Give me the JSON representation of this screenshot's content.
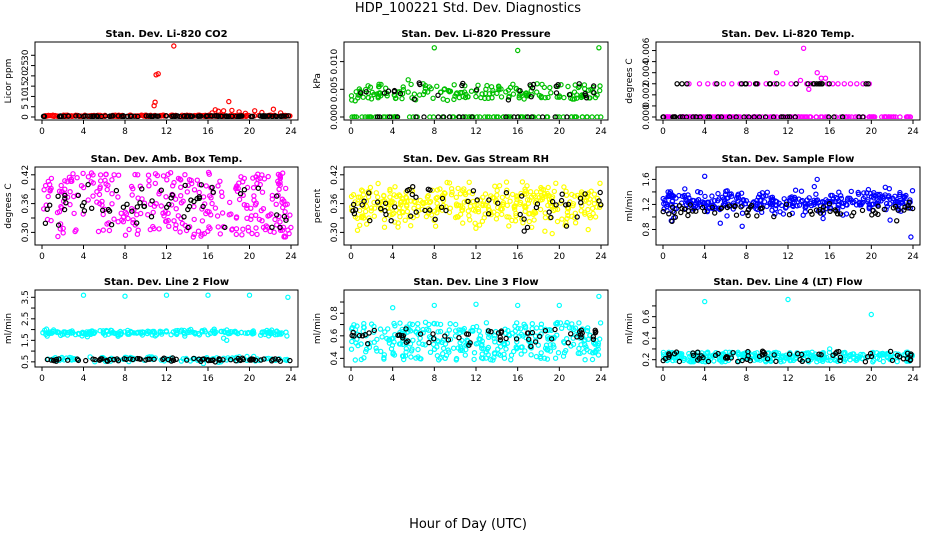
{
  "title": "HDP_100221  Std. Dev. Diagnostics",
  "x_axis_title": "Hour of Day (UTC)",
  "chart_data": [
    {
      "type": "scatter",
      "title": "Stan. Dev. Li-820 CO2",
      "ylabel": "Licor ppm",
      "color": "#ff0000",
      "xlim": [
        0,
        24
      ],
      "ylim": [
        0,
        35
      ],
      "xticks": [
        0,
        4,
        8,
        12,
        16,
        20,
        24
      ],
      "yticks": [
        0,
        5,
        10,
        15,
        20,
        25,
        30
      ],
      "ytick_labels": [
        "0",
        "5",
        "10",
        "15",
        "20",
        "25",
        "30"
      ],
      "band": {
        "type": "uniform",
        "lo": 0.2,
        "hi": 0.9,
        "n": 230
      },
      "outliers": [
        [
          10.8,
          5.5
        ],
        [
          10.9,
          7.2
        ],
        [
          11.0,
          20.5
        ],
        [
          11.2,
          21.0
        ],
        [
          12.7,
          34.5
        ],
        [
          16.4,
          2.0
        ],
        [
          16.7,
          3.5
        ],
        [
          17.0,
          2.8
        ],
        [
          17.5,
          3.0
        ],
        [
          18.0,
          7.5
        ],
        [
          18.3,
          3.2
        ],
        [
          19.0,
          2.5
        ],
        [
          19.6,
          1.8
        ],
        [
          20.5,
          3.0
        ],
        [
          21.2,
          2.2
        ],
        [
          22.3,
          3.8
        ],
        [
          23.0,
          2.0
        ]
      ],
      "black": {
        "type": "uniform",
        "lo": 0.2,
        "hi": 0.6,
        "n": 120
      }
    },
    {
      "type": "scatter",
      "title": "Stan. Dev. Li-820 Pressure",
      "ylabel": "kPa",
      "color": "#00c000",
      "xlim": [
        0,
        24
      ],
      "ylim": [
        0,
        0.013
      ],
      "xticks": [
        0,
        4,
        8,
        12,
        16,
        20,
        24
      ],
      "yticks": [
        0,
        0.005,
        0.01
      ],
      "ytick_labels": [
        "0.000",
        "0.005",
        "0.010"
      ],
      "band": {
        "type": "levels",
        "levels": [
          0.0,
          0.0035,
          0.0045,
          0.0055
        ],
        "probs": [
          0.28,
          0.25,
          0.25,
          0.22
        ],
        "n": 260
      },
      "outliers": [
        [
          8.0,
          0.0125
        ],
        [
          16.0,
          0.012
        ],
        [
          23.8,
          0.0125
        ]
      ],
      "black": {
        "type": "levels",
        "levels": [
          0.0,
          0.0035,
          0.0045,
          0.0055
        ],
        "probs": [
          0.4,
          0.2,
          0.2,
          0.2
        ],
        "n": 50
      }
    },
    {
      "type": "scatter",
      "title": "Stan. Dev. Li-820 Temp.",
      "ylabel": "degrees C",
      "color": "#ff00ff",
      "xlim": [
        0,
        24
      ],
      "ylim": [
        0,
        0.0065
      ],
      "xticks": [
        0,
        4,
        8,
        12,
        16,
        20,
        24
      ],
      "yticks": [
        0,
        0.001,
        0.002,
        0.003,
        0.004,
        0.005,
        0.006
      ],
      "ytick_labels": [
        "0.000",
        "",
        "0.002",
        "",
        "0.004",
        "",
        "0.006"
      ],
      "band": {
        "type": "levels",
        "levels": [
          0.0
        ],
        "probs": [
          1
        ],
        "n": 150
      },
      "outliers": [
        [
          2.5,
          0.003
        ],
        [
          3.5,
          0.003
        ],
        [
          4.3,
          0.003
        ],
        [
          5.0,
          0.003
        ],
        [
          5.8,
          0.003
        ],
        [
          6.6,
          0.003
        ],
        [
          7.4,
          0.003
        ],
        [
          8.3,
          0.003
        ],
        [
          9.1,
          0.003
        ],
        [
          9.9,
          0.003
        ],
        [
          10.7,
          0.003
        ],
        [
          10.9,
          0.004
        ],
        [
          11.5,
          0.003
        ],
        [
          12.3,
          0.003
        ],
        [
          12.8,
          0.003
        ],
        [
          13.2,
          0.0033
        ],
        [
          13.5,
          0.0062
        ],
        [
          13.8,
          0.003
        ],
        [
          14.2,
          0.003
        ],
        [
          14.8,
          0.004
        ],
        [
          15.2,
          0.0035
        ],
        [
          15.6,
          0.0035
        ],
        [
          15.0,
          0.003
        ],
        [
          15.8,
          0.003
        ],
        [
          16.3,
          0.003
        ],
        [
          16.8,
          0.003
        ],
        [
          17.4,
          0.003
        ],
        [
          18.0,
          0.003
        ],
        [
          18.6,
          0.003
        ],
        [
          19.2,
          0.003
        ],
        [
          19.8,
          0.003
        ],
        [
          14.0,
          0.0025
        ]
      ],
      "black": {
        "type": "mixed",
        "levels": [
          0.0,
          0.003
        ],
        "probs": [
          0.75,
          0.25
        ],
        "n": 60,
        "xmax": 20
      }
    },
    {
      "type": "scatter",
      "title": "Stan. Dev. Amb. Box Temp.",
      "ylabel": "degrees C",
      "color": "#ff00ff",
      "xlim": [
        0,
        24
      ],
      "ylim": [
        0.28,
        0.43
      ],
      "xticks": [
        0,
        4,
        8,
        12,
        16,
        20,
        24
      ],
      "yticks": [
        0.3,
        0.33,
        0.36,
        0.39,
        0.42
      ],
      "ytick_labels": [
        "0.30",
        "",
        "0.36",
        "",
        "0.42"
      ],
      "band": {
        "type": "uniform",
        "lo": 0.29,
        "hi": 0.425,
        "n": 320
      },
      "outliers": [],
      "black": {
        "type": "uniform",
        "lo": 0.31,
        "hi": 0.4,
        "n": 60
      }
    },
    {
      "type": "scatter",
      "title": "Stan. Dev. Gas Stream RH",
      "ylabel": "percent",
      "color": "#ffff00",
      "xlim": [
        0,
        24
      ],
      "ylim": [
        0.28,
        0.43
      ],
      "xticks": [
        0,
        4,
        8,
        12,
        16,
        20,
        24
      ],
      "yticks": [
        0.3,
        0.33,
        0.36,
        0.39,
        0.42
      ],
      "ytick_labels": [
        "0.30",
        "",
        "0.36",
        "",
        "0.42"
      ],
      "band": {
        "type": "normal",
        "mean": 0.355,
        "sd": 0.022,
        "n": 380
      },
      "outliers": [],
      "black": {
        "type": "normal",
        "mean": 0.355,
        "sd": 0.02,
        "n": 60
      }
    },
    {
      "type": "scatter",
      "title": "Stan. Dev. Sample Flow",
      "ylabel": "ml/min",
      "color": "#0000ff",
      "xlim": [
        0,
        24
      ],
      "ylim": [
        0.6,
        1.75
      ],
      "xticks": [
        0,
        4,
        8,
        12,
        16,
        20,
        24
      ],
      "yticks": [
        0.8,
        1.0,
        1.2,
        1.4,
        1.6
      ],
      "ytick_labels": [
        "0.8",
        "",
        "1.2",
        "",
        "1.6"
      ],
      "band": {
        "type": "normal",
        "mean": 1.24,
        "sd": 0.09,
        "n": 340
      },
      "outliers": [
        [
          4.0,
          1.65
        ],
        [
          14.8,
          1.6
        ],
        [
          23.8,
          0.68
        ],
        [
          5.5,
          0.9
        ],
        [
          7.6,
          0.85
        ],
        [
          21.8,
          0.95
        ]
      ],
      "black": {
        "type": "normal",
        "mean": 1.1,
        "sd": 0.07,
        "n": 70
      }
    },
    {
      "type": "scatter",
      "title": "Stan. Dev. Line 2 Flow",
      "ylabel": "ml/min",
      "color": "#00ffff",
      "xlim": [
        0,
        24
      ],
      "ylim": [
        0.4,
        3.7
      ],
      "xticks": [
        0,
        4,
        8,
        12,
        16,
        20,
        24
      ],
      "yticks": [
        0.5,
        1.0,
        1.5,
        2.0,
        2.5,
        3.0,
        3.5
      ],
      "ytick_labels": [
        "0.5",
        "",
        "1.5",
        "",
        "2.5",
        "",
        "3.5"
      ],
      "band": {
        "type": "levels",
        "levels": [
          1.85,
          0.62
        ],
        "probs": [
          0.65,
          0.35
        ],
        "n": 300,
        "jitter": 0.06
      },
      "outliers": [
        [
          4.0,
          3.6
        ],
        [
          8.0,
          3.55
        ],
        [
          12.0,
          3.6
        ],
        [
          16.0,
          3.6
        ],
        [
          20.0,
          3.6
        ],
        [
          23.7,
          3.5
        ],
        [
          17.8,
          1.5
        ],
        [
          17.5,
          1.6
        ]
      ],
      "black": {
        "type": "levels",
        "levels": [
          0.6
        ],
        "probs": [
          1
        ],
        "n": 80,
        "jitter": 0.04
      }
    },
    {
      "type": "scatter",
      "title": "Stan. Dev. Line 3 Flow",
      "ylabel": "ml/min",
      "color": "#00ffff",
      "xlim": [
        0,
        24
      ],
      "ylim": [
        0.35,
        0.98
      ],
      "xticks": [
        0,
        4,
        8,
        12,
        16,
        20,
        24
      ],
      "yticks": [
        0.4,
        0.5,
        0.6,
        0.7,
        0.8,
        0.9
      ],
      "ytick_labels": [
        "0.4",
        "",
        "0.6",
        "",
        "0.8",
        ""
      ],
      "band": {
        "type": "uniform",
        "lo": 0.38,
        "hi": 0.72,
        "n": 360
      },
      "outliers": [
        [
          4.0,
          0.85
        ],
        [
          8.0,
          0.87
        ],
        [
          12.0,
          0.88
        ],
        [
          16.0,
          0.87
        ],
        [
          20.0,
          0.87
        ],
        [
          23.8,
          0.95
        ]
      ],
      "black": {
        "type": "normal",
        "mean": 0.6,
        "sd": 0.035,
        "n": 60
      }
    },
    {
      "type": "scatter",
      "title": "Stan. Dev. Line 4 (LT) Flow",
      "ylabel": "ml/min",
      "color": "#00ffff",
      "xlim": [
        0,
        24
      ],
      "ylim": [
        0.16,
        0.82
      ],
      "xticks": [
        0,
        4,
        8,
        12,
        16,
        20,
        24
      ],
      "yticks": [
        0.2,
        0.3,
        0.4,
        0.5,
        0.6,
        0.7
      ],
      "ytick_labels": [
        "0.2",
        "",
        "0.4",
        "",
        "0.6",
        ""
      ],
      "band": {
        "type": "uniform",
        "lo": 0.18,
        "hi": 0.27,
        "n": 300
      },
      "outliers": [
        [
          4.0,
          0.74
        ],
        [
          12.0,
          0.76
        ],
        [
          20.0,
          0.62
        ],
        [
          16.0,
          0.3
        ]
      ],
      "black": {
        "type": "uniform",
        "lo": 0.18,
        "hi": 0.28,
        "n": 70
      }
    }
  ]
}
